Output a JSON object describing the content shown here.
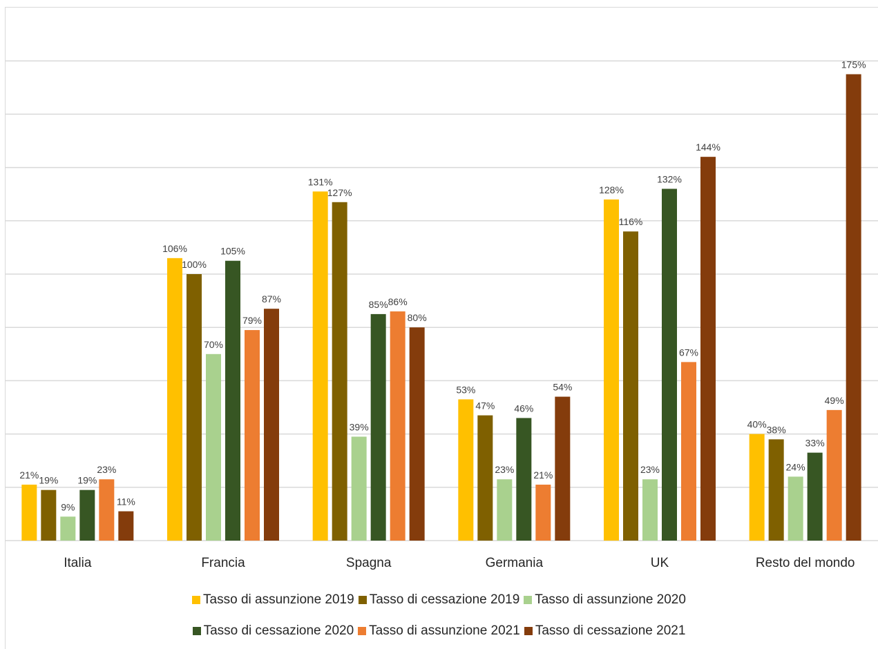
{
  "chart_data": {
    "type": "bar",
    "categories": [
      "Italia",
      "Francia",
      "Spagna",
      "Germania",
      "UK",
      "Resto del mondo"
    ],
    "series": [
      {
        "name": "Tasso di assunzione 2019",
        "color": "#FFC000",
        "values": [
          21,
          106,
          131,
          53,
          128,
          40
        ]
      },
      {
        "name": "Tasso di cessazione 2019",
        "color": "#7F6000",
        "values": [
          19,
          100,
          127,
          47,
          116,
          38
        ]
      },
      {
        "name": "Tasso di assunzione 2020",
        "color": "#A9D18E",
        "values": [
          9,
          70,
          39,
          23,
          23,
          24
        ]
      },
      {
        "name": "Tasso di cessazione 2020",
        "color": "#375623",
        "values": [
          19,
          105,
          85,
          46,
          132,
          33
        ]
      },
      {
        "name": "Tasso di assunzione 2021",
        "color": "#ED7D31",
        "values": [
          23,
          79,
          86,
          21,
          67,
          49
        ]
      },
      {
        "name": "Tasso di cessazione 2021",
        "color": "#843C0C",
        "values": [
          11,
          87,
          80,
          54,
          144,
          175
        ]
      }
    ],
    "value_suffix": "%",
    "ylim": [
      0,
      180
    ],
    "grid": true,
    "legend_position": "bottom"
  }
}
